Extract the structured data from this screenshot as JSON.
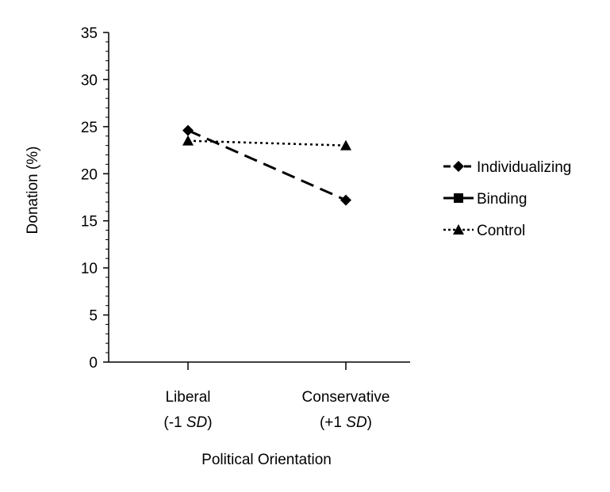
{
  "chart_data": {
    "type": "line",
    "xlabel": "Political Orientation",
    "ylabel": "Donation (%)",
    "ylim": [
      0,
      35
    ],
    "yticks": [
      0,
      5,
      10,
      15,
      20,
      25,
      30,
      35
    ],
    "y_minor_ticks": true,
    "grid": false,
    "legend_position": "right",
    "categories": [
      {
        "main": "Liberal",
        "sub_prefix": "(-1 ",
        "sub_italic": "SD",
        "sub_suffix": ")"
      },
      {
        "main": "Conservative",
        "sub_prefix": "(+1 ",
        "sub_italic": "SD",
        "sub_suffix": ")"
      }
    ],
    "series": [
      {
        "name": "Individualizing",
        "values": [
          24.6,
          17.2
        ],
        "marker": "diamond",
        "dash": "long-dash",
        "color": "#000000"
      },
      {
        "name": "Binding",
        "values": [
          null,
          null
        ],
        "marker": "square",
        "dash": "solid",
        "color": "#000000"
      },
      {
        "name": "Control",
        "values": [
          23.5,
          23.0
        ],
        "marker": "triangle",
        "dash": "dotted",
        "color": "#000000"
      }
    ]
  }
}
